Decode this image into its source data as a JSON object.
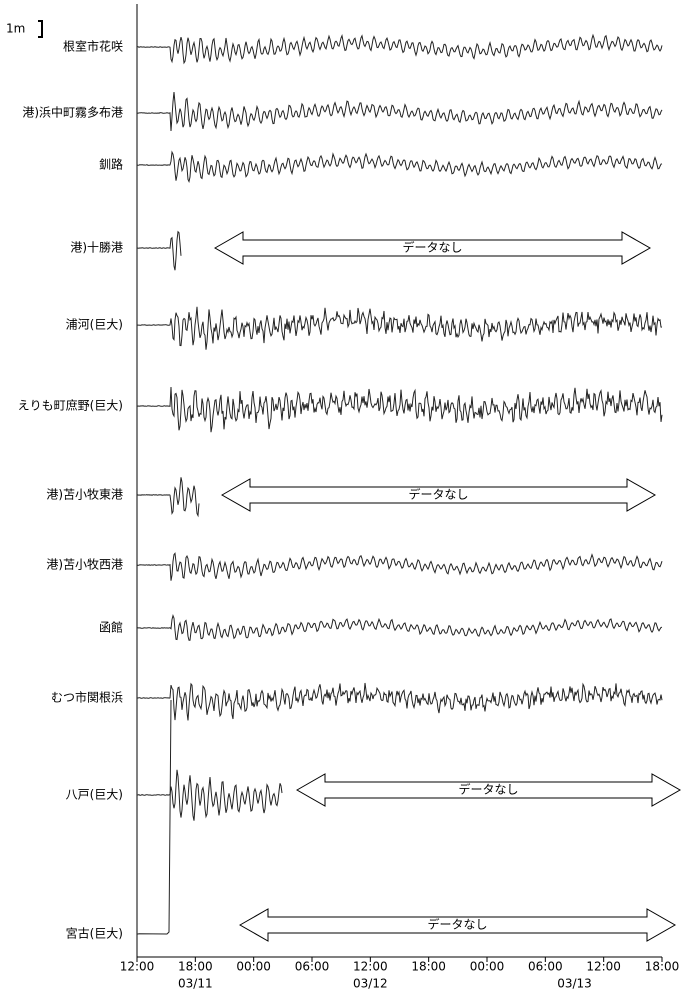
{
  "chart_data": {
    "type": "waveform",
    "scale_label": "1m",
    "stations": [
      {
        "name": "根室市花咲"
      },
      {
        "name": "港)浜中町霧多布港"
      },
      {
        "name": "釧路"
      },
      {
        "name": "港)十勝港",
        "note": "データなし"
      },
      {
        "name": "浦河(巨大)"
      },
      {
        "name": "えりも町庶野(巨大)"
      },
      {
        "name": "港)苫小牧東港",
        "note": "データなし"
      },
      {
        "name": "港)苫小牧西港"
      },
      {
        "name": "函館"
      },
      {
        "name": "むつ市関根浜"
      },
      {
        "name": "八戸(巨大)",
        "note": "データなし"
      },
      {
        "name": "宮古(巨大)",
        "note": "データなし"
      }
    ],
    "xlim": [
      0,
      54
    ],
    "xticks": [
      {
        "value": 0,
        "label": "12:00"
      },
      {
        "value": 6,
        "label": "18:00"
      },
      {
        "value": 12,
        "label": "00:00"
      },
      {
        "value": 18,
        "label": "06:00"
      },
      {
        "value": 24,
        "label": "12:00"
      },
      {
        "value": 30,
        "label": "18:00"
      },
      {
        "value": 36,
        "label": "00:00"
      },
      {
        "value": 42,
        "label": "06:00"
      },
      {
        "value": 48,
        "label": "12:00"
      },
      {
        "value": 54,
        "label": "18:00"
      }
    ],
    "dates": [
      {
        "value": 6,
        "label": "03/11"
      },
      {
        "value": 24,
        "label": "03/12"
      },
      {
        "value": 45,
        "label": "03/13"
      }
    ]
  }
}
